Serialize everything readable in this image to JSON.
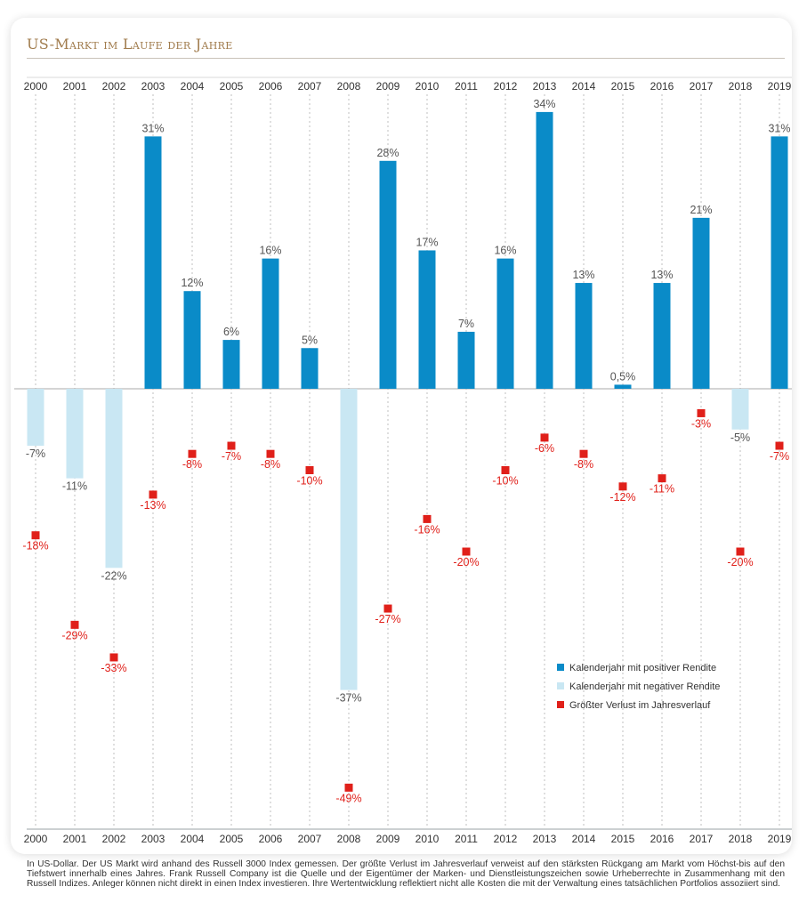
{
  "title": "US-Markt im Laufe der Jahre",
  "colors": {
    "positive": "#0a8bc8",
    "negative": "#c9e7f3",
    "max_loss": "#e0201a",
    "positive_label": "#555555",
    "loss_label": "#e0201a",
    "title": "#a07b4c"
  },
  "chart_data": {
    "type": "bar",
    "categories": [
      "2000",
      "2001",
      "2002",
      "2003",
      "2004",
      "2005",
      "2006",
      "2007",
      "2008",
      "2009",
      "2010",
      "2011",
      "2012",
      "2013",
      "2014",
      "2015",
      "2016",
      "2017",
      "2018",
      "2019"
    ],
    "series": [
      {
        "name": "Kalenderjahr mit positiver / negativer Rendite",
        "values": [
          -7,
          -11,
          -22,
          31,
          12,
          6,
          16,
          5,
          -37,
          28,
          17,
          7,
          16,
          34,
          13,
          0.5,
          13,
          21,
          -5,
          31
        ],
        "labels": [
          "-7%",
          "-11%",
          "-22%",
          "31%",
          "12%",
          "6%",
          "16%",
          "5%",
          "-37%",
          "28%",
          "17%",
          "7%",
          "16%",
          "34%",
          "13%",
          "0,5%",
          "13%",
          "21%",
          "-5%",
          "31%"
        ]
      },
      {
        "name": "Größter Verlust im Jahresverlauf",
        "type": "scatter",
        "values": [
          -18,
          -29,
          -33,
          -13,
          -8,
          -7,
          -8,
          -10,
          -49,
          -27,
          -16,
          -20,
          -10,
          -6,
          -8,
          -12,
          -11,
          -3,
          -20,
          -7
        ],
        "labels": [
          "-18%",
          "-29%",
          "-33%",
          "-13%",
          "-8%",
          "-7%",
          "-8%",
          "-10%",
          "-49%",
          "-27%",
          "-16%",
          "-20%",
          "-10%",
          "-6%",
          "-8%",
          "-12%",
          "-11%",
          "-3%",
          "-20%",
          "-7%"
        ]
      }
    ],
    "ylim": [
      -54,
      36
    ],
    "grid": "vertical dotted per year",
    "legend": {
      "position": "bottom-right",
      "entries": [
        {
          "label": "Kalenderjahr mit positiver Rendite",
          "color": "#0a8bc8"
        },
        {
          "label": "Kalenderjahr mit negativer Rendite",
          "color": "#c9e7f3"
        },
        {
          "label": "Größter Verlust im Jahresverlauf",
          "color": "#e0201a"
        }
      ]
    }
  },
  "footnote": "In US-Dollar. Der US Markt wird anhand des Russell 3000 Index gemessen. Der größte Verlust im Jahresverlauf verweist auf den stärksten Rückgang am Markt vom Höchst-bis auf den Tiefstwert innerhalb eines Jahres. Frank Russell Company ist die Quelle und der Eigentümer der Marken- und Dienstleistungszeichen sowie Urheberrechte in Zusammenhang mit den Russell Indizes. Anleger können nicht direkt in einen Index investieren. Ihre Wertentwicklung reflektiert nicht alle Kosten die mit der Verwaltung eines tatsächlichen Portfolios assoziiert sind."
}
